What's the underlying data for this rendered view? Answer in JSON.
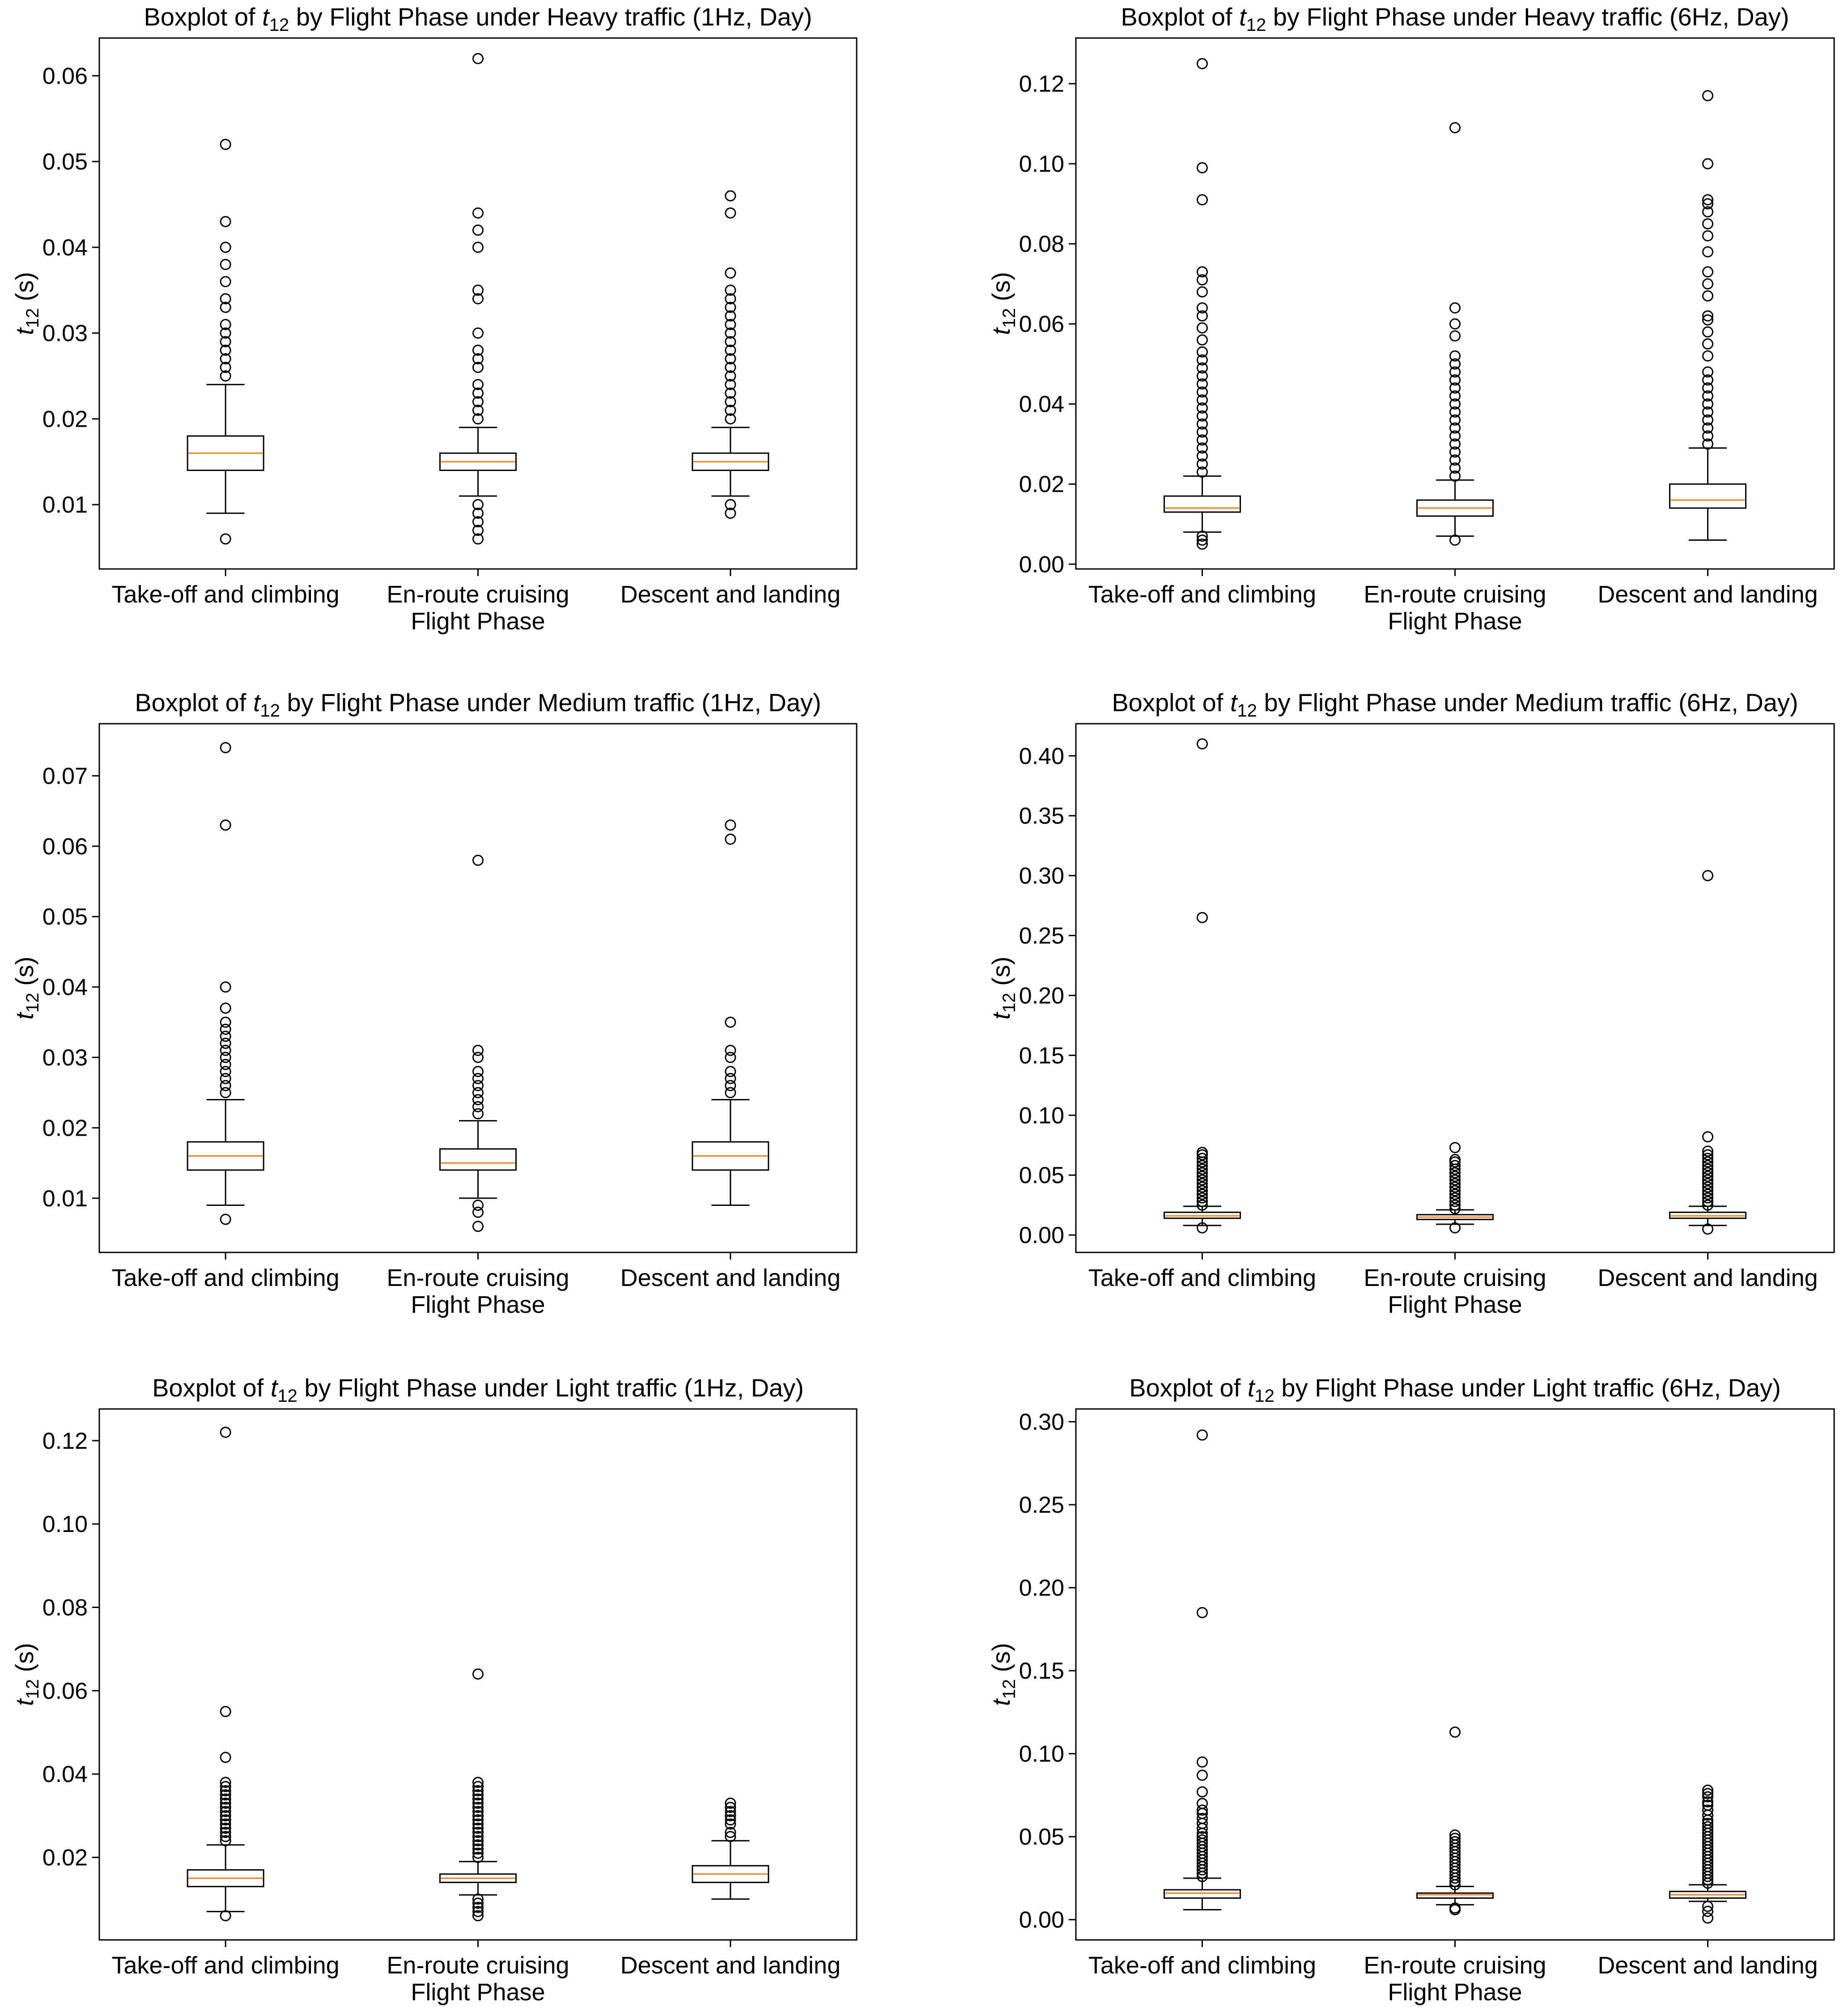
{
  "colors": {
    "box": "#000000",
    "median": "#ff7f0e",
    "outlier": "#000000",
    "background": "#ffffff"
  },
  "chart_data": [
    {
      "type": "boxplot",
      "title": {
        "prefix": "Boxplot of ",
        "var": "t",
        "sub": "12",
        "suffix": " by Flight Phase under Heavy traffic (1Hz, Day)"
      },
      "ylabel": {
        "var": "t",
        "sub": "12",
        "unit": " (s)"
      },
      "xlabel": "Flight Phase",
      "ylim": [
        0.0025,
        0.0644
      ],
      "yticks": [
        0.01,
        0.02,
        0.03,
        0.04,
        0.05,
        0.06
      ],
      "ytick_labels": [
        "0.01",
        "0.02",
        "0.03",
        "0.04",
        "0.05",
        "0.06"
      ],
      "categories": [
        "Take-off and climbing",
        "En-route cruising",
        "Descent and landing"
      ],
      "boxes": [
        {
          "whislo": 0.009,
          "q1": 0.014,
          "med": 0.016,
          "q3": 0.018,
          "whishi": 0.024,
          "fliers": [
            0.006,
            0.025,
            0.026,
            0.027,
            0.028,
            0.029,
            0.03,
            0.031,
            0.033,
            0.034,
            0.036,
            0.038,
            0.04,
            0.043,
            0.052
          ]
        },
        {
          "whislo": 0.011,
          "q1": 0.014,
          "med": 0.015,
          "q3": 0.016,
          "whishi": 0.019,
          "fliers": [
            0.006,
            0.007,
            0.008,
            0.009,
            0.01,
            0.02,
            0.021,
            0.022,
            0.023,
            0.024,
            0.026,
            0.027,
            0.028,
            0.03,
            0.034,
            0.035,
            0.04,
            0.042,
            0.044,
            0.062
          ]
        },
        {
          "whislo": 0.011,
          "q1": 0.014,
          "med": 0.015,
          "q3": 0.016,
          "whishi": 0.019,
          "fliers": [
            0.009,
            0.01,
            0.02,
            0.021,
            0.022,
            0.023,
            0.024,
            0.025,
            0.026,
            0.027,
            0.028,
            0.029,
            0.03,
            0.031,
            0.032,
            0.033,
            0.034,
            0.035,
            0.037,
            0.044,
            0.046
          ]
        }
      ]
    },
    {
      "type": "boxplot",
      "title": {
        "prefix": "Boxplot of ",
        "var": "t",
        "sub": "12",
        "suffix": " by Flight Phase under Heavy traffic (6Hz, Day)"
      },
      "ylabel": {
        "var": "t",
        "sub": "12",
        "unit": " (s)"
      },
      "xlabel": "Flight Phase",
      "ylim": [
        -0.0012,
        0.1314
      ],
      "yticks": [
        0.0,
        0.02,
        0.04,
        0.06,
        0.08,
        0.1,
        0.12
      ],
      "ytick_labels": [
        "0.00",
        "0.02",
        "0.04",
        "0.06",
        "0.08",
        "0.10",
        "0.12"
      ],
      "categories": [
        "Take-off and climbing",
        "En-route cruising",
        "Descent and landing"
      ],
      "boxes": [
        {
          "whislo": 0.008,
          "q1": 0.013,
          "med": 0.014,
          "q3": 0.017,
          "whishi": 0.022,
          "fliers": [
            0.005,
            0.006,
            0.007,
            0.023,
            0.025,
            0.027,
            0.029,
            0.031,
            0.033,
            0.035,
            0.037,
            0.039,
            0.041,
            0.043,
            0.045,
            0.047,
            0.049,
            0.051,
            0.053,
            0.056,
            0.059,
            0.062,
            0.064,
            0.068,
            0.071,
            0.073,
            0.091,
            0.099,
            0.125
          ]
        },
        {
          "whislo": 0.007,
          "q1": 0.012,
          "med": 0.014,
          "q3": 0.016,
          "whishi": 0.021,
          "fliers": [
            0.006,
            0.022,
            0.024,
            0.026,
            0.028,
            0.03,
            0.032,
            0.034,
            0.036,
            0.038,
            0.04,
            0.042,
            0.044,
            0.046,
            0.048,
            0.05,
            0.052,
            0.057,
            0.06,
            0.064,
            0.109
          ]
        },
        {
          "whislo": 0.006,
          "q1": 0.014,
          "med": 0.016,
          "q3": 0.02,
          "whishi": 0.029,
          "fliers": [
            0.03,
            0.032,
            0.034,
            0.036,
            0.038,
            0.04,
            0.042,
            0.044,
            0.046,
            0.048,
            0.052,
            0.055,
            0.058,
            0.061,
            0.062,
            0.067,
            0.07,
            0.073,
            0.078,
            0.082,
            0.085,
            0.088,
            0.09,
            0.091,
            0.1,
            0.117
          ]
        }
      ]
    },
    {
      "type": "boxplot",
      "title": {
        "prefix": "Boxplot of ",
        "var": "t",
        "sub": "12",
        "suffix": " by Flight Phase under Medium traffic (1Hz, Day)"
      },
      "ylabel": {
        "var": "t",
        "sub": "12",
        "unit": " (s)"
      },
      "xlabel": "Flight Phase",
      "ylim": [
        0.0023,
        0.0774
      ],
      "yticks": [
        0.01,
        0.02,
        0.03,
        0.04,
        0.05,
        0.06,
        0.07
      ],
      "ytick_labels": [
        "0.01",
        "0.02",
        "0.03",
        "0.04",
        "0.05",
        "0.06",
        "0.07"
      ],
      "categories": [
        "Take-off and climbing",
        "En-route cruising",
        "Descent and landing"
      ],
      "boxes": [
        {
          "whislo": 0.009,
          "q1": 0.014,
          "med": 0.016,
          "q3": 0.018,
          "whishi": 0.024,
          "fliers": [
            0.007,
            0.025,
            0.026,
            0.027,
            0.028,
            0.029,
            0.03,
            0.031,
            0.032,
            0.033,
            0.034,
            0.035,
            0.037,
            0.04,
            0.063,
            0.074
          ]
        },
        {
          "whislo": 0.01,
          "q1": 0.014,
          "med": 0.015,
          "q3": 0.017,
          "whishi": 0.021,
          "fliers": [
            0.006,
            0.008,
            0.009,
            0.022,
            0.023,
            0.024,
            0.025,
            0.026,
            0.027,
            0.028,
            0.03,
            0.031,
            0.058
          ]
        },
        {
          "whislo": 0.009,
          "q1": 0.014,
          "med": 0.016,
          "q3": 0.018,
          "whishi": 0.024,
          "fliers": [
            0.025,
            0.026,
            0.027,
            0.028,
            0.03,
            0.031,
            0.035,
            0.061,
            0.063
          ]
        }
      ]
    },
    {
      "type": "boxplot",
      "title": {
        "prefix": "Boxplot of ",
        "var": "t",
        "sub": "12",
        "suffix": " by Flight Phase under Medium traffic (6Hz, Day)"
      },
      "ylabel": {
        "var": "t",
        "sub": "12",
        "unit": " (s)"
      },
      "xlabel": "Flight Phase",
      "ylim": [
        -0.0145,
        0.4268
      ],
      "yticks": [
        0.0,
        0.05,
        0.1,
        0.15,
        0.2,
        0.25,
        0.3,
        0.35,
        0.4
      ],
      "ytick_labels": [
        "0.00",
        "0.05",
        "0.10",
        "0.15",
        "0.20",
        "0.25",
        "0.30",
        "0.35",
        "0.40"
      ],
      "categories": [
        "Take-off and climbing",
        "En-route cruising",
        "Descent and landing"
      ],
      "boxes": [
        {
          "whislo": 0.008,
          "q1": 0.014,
          "med": 0.016,
          "q3": 0.019,
          "whishi": 0.024,
          "fliers": [
            0.006,
            0.025,
            0.028,
            0.031,
            0.034,
            0.037,
            0.04,
            0.043,
            0.046,
            0.049,
            0.052,
            0.055,
            0.058,
            0.061,
            0.064,
            0.067,
            0.069,
            0.265,
            0.41
          ]
        },
        {
          "whislo": 0.009,
          "q1": 0.013,
          "med": 0.015,
          "q3": 0.017,
          "whishi": 0.021,
          "fliers": [
            0.006,
            0.022,
            0.025,
            0.028,
            0.031,
            0.034,
            0.037,
            0.04,
            0.043,
            0.046,
            0.049,
            0.052,
            0.055,
            0.058,
            0.061,
            0.063,
            0.073
          ]
        },
        {
          "whislo": 0.008,
          "q1": 0.014,
          "med": 0.016,
          "q3": 0.019,
          "whishi": 0.024,
          "fliers": [
            0.005,
            0.025,
            0.028,
            0.031,
            0.034,
            0.037,
            0.04,
            0.043,
            0.046,
            0.049,
            0.052,
            0.055,
            0.058,
            0.061,
            0.064,
            0.067,
            0.07,
            0.082,
            0.3
          ]
        }
      ]
    },
    {
      "type": "boxplot",
      "title": {
        "prefix": "Boxplot of ",
        "var": "t",
        "sub": "12",
        "suffix": " by Flight Phase under Light traffic (1Hz, Day)"
      },
      "ylabel": {
        "var": "t",
        "sub": "12",
        "unit": " (s)"
      },
      "xlabel": "Flight Phase",
      "ylim": [
        0.0002,
        0.1276
      ],
      "yticks": [
        0.02,
        0.04,
        0.06,
        0.08,
        0.1,
        0.12
      ],
      "ytick_labels": [
        "0.02",
        "0.04",
        "0.06",
        "0.08",
        "0.10",
        "0.12"
      ],
      "categories": [
        "Take-off and climbing",
        "En-route cruising",
        "Descent and landing"
      ],
      "boxes": [
        {
          "whislo": 0.007,
          "q1": 0.013,
          "med": 0.015,
          "q3": 0.017,
          "whishi": 0.023,
          "fliers": [
            0.006,
            0.024,
            0.025,
            0.026,
            0.027,
            0.028,
            0.029,
            0.03,
            0.031,
            0.032,
            0.033,
            0.034,
            0.035,
            0.036,
            0.037,
            0.038,
            0.044,
            0.055,
            0.122
          ]
        },
        {
          "whislo": 0.011,
          "q1": 0.014,
          "med": 0.015,
          "q3": 0.016,
          "whishi": 0.019,
          "fliers": [
            0.006,
            0.007,
            0.008,
            0.009,
            0.01,
            0.02,
            0.021,
            0.022,
            0.023,
            0.024,
            0.025,
            0.026,
            0.027,
            0.028,
            0.029,
            0.03,
            0.031,
            0.032,
            0.033,
            0.034,
            0.035,
            0.036,
            0.037,
            0.038,
            0.064
          ]
        },
        {
          "whislo": 0.01,
          "q1": 0.014,
          "med": 0.016,
          "q3": 0.018,
          "whishi": 0.024,
          "fliers": [
            0.025,
            0.026,
            0.028,
            0.029,
            0.03,
            0.031,
            0.032,
            0.033
          ]
        }
      ]
    },
    {
      "type": "boxplot",
      "title": {
        "prefix": "Boxplot of ",
        "var": "t",
        "sub": "12",
        "suffix": " by Flight Phase under Light traffic (6Hz, Day)"
      },
      "ylabel": {
        "var": "t",
        "sub": "12",
        "unit": " (s)"
      },
      "xlabel": "Flight Phase",
      "ylim": [
        -0.0122,
        0.3077
      ],
      "yticks": [
        0.0,
        0.05,
        0.1,
        0.15,
        0.2,
        0.25,
        0.3
      ],
      "ytick_labels": [
        "0.00",
        "0.05",
        "0.10",
        "0.15",
        "0.20",
        "0.25",
        "0.30"
      ],
      "categories": [
        "Take-off and climbing",
        "En-route cruising",
        "Descent and landing"
      ],
      "boxes": [
        {
          "whislo": 0.006,
          "q1": 0.013,
          "med": 0.016,
          "q3": 0.018,
          "whishi": 0.025,
          "fliers": [
            0.026,
            0.028,
            0.03,
            0.032,
            0.034,
            0.036,
            0.038,
            0.04,
            0.042,
            0.044,
            0.046,
            0.048,
            0.05,
            0.052,
            0.055,
            0.058,
            0.061,
            0.064,
            0.066,
            0.07,
            0.077,
            0.087,
            0.095,
            0.185,
            0.292
          ]
        },
        {
          "whislo": 0.009,
          "q1": 0.013,
          "med": 0.015,
          "q3": 0.016,
          "whishi": 0.02,
          "fliers": [
            0.006,
            0.007,
            0.021,
            0.023,
            0.025,
            0.027,
            0.029,
            0.031,
            0.033,
            0.035,
            0.037,
            0.039,
            0.041,
            0.043,
            0.045,
            0.047,
            0.049,
            0.051,
            0.113
          ]
        },
        {
          "whislo": 0.011,
          "q1": 0.013,
          "med": 0.015,
          "q3": 0.017,
          "whishi": 0.021,
          "fliers": [
            0.001,
            0.005,
            0.008,
            0.022,
            0.024,
            0.026,
            0.028,
            0.03,
            0.032,
            0.034,
            0.036,
            0.038,
            0.04,
            0.042,
            0.044,
            0.046,
            0.048,
            0.05,
            0.052,
            0.054,
            0.056,
            0.058,
            0.06,
            0.063,
            0.066,
            0.069,
            0.071,
            0.074,
            0.076,
            0.078
          ]
        }
      ]
    }
  ]
}
